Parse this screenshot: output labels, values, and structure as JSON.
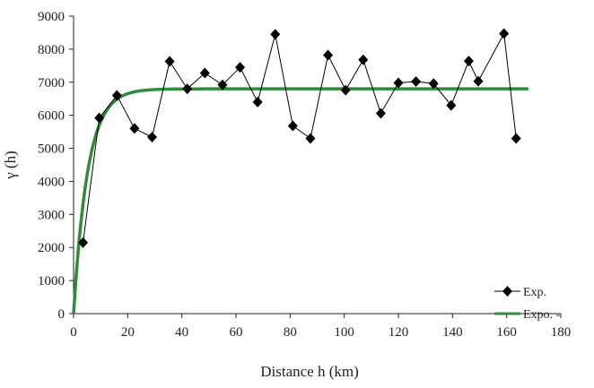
{
  "chart_data": {
    "type": "line",
    "xlabel": "Distance h (km)",
    "ylabel": "γ (h)",
    "xlim": [
      0,
      180
    ],
    "ylim": [
      0,
      9000
    ],
    "xticks": [
      0,
      20,
      40,
      60,
      80,
      100,
      120,
      140,
      160,
      180
    ],
    "yticks": [
      0,
      1000,
      2000,
      3000,
      4000,
      5000,
      6000,
      7000,
      8000,
      9000
    ],
    "grid": false,
    "legend_position": "bottom-right",
    "series": [
      {
        "name": "Exp.",
        "style": "line-with-diamond-markers",
        "color": "#000000",
        "points": [
          [
            3.5,
            2150
          ],
          [
            9.5,
            5920
          ],
          [
            16,
            6600
          ],
          [
            22.5,
            5600
          ],
          [
            29,
            5340
          ],
          [
            35.5,
            7630
          ],
          [
            42,
            6800
          ],
          [
            48.5,
            7280
          ],
          [
            55,
            6920
          ],
          [
            61.5,
            7450
          ],
          [
            68,
            6400
          ],
          [
            74.5,
            8450
          ],
          [
            81,
            5680
          ],
          [
            87.5,
            5300
          ],
          [
            94,
            7820
          ],
          [
            100.5,
            6760
          ],
          [
            107,
            7680
          ],
          [
            113.5,
            6060
          ],
          [
            120,
            6980
          ],
          [
            126.5,
            7020
          ],
          [
            133,
            6960
          ],
          [
            139.5,
            6300
          ],
          [
            146,
            7640
          ],
          [
            149.5,
            7030
          ],
          [
            159,
            8470
          ],
          [
            163.5,
            5300
          ]
        ]
      },
      {
        "name": "Expo. -",
        "style": "line",
        "color": "#2e8b3a",
        "model": {
          "sill": 6800,
          "range": 5.2,
          "x_min": 0,
          "x_max": 168
        }
      }
    ]
  }
}
